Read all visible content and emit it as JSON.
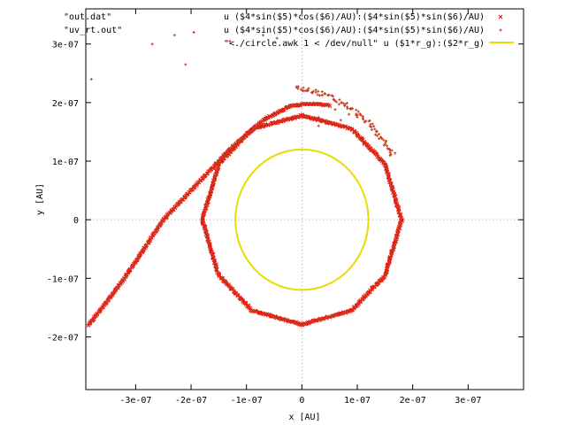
{
  "chart_data": {
    "type": "scatter",
    "xlabel": "x [AU]",
    "ylabel": "y [AU]",
    "xlim": [
      -3.9e-07,
      4e-07
    ],
    "ylim": [
      -2.9e-07,
      3.6e-07
    ],
    "xticks": [
      {
        "value": -3e-07,
        "label": "-3e-07"
      },
      {
        "value": -2e-07,
        "label": "-2e-07"
      },
      {
        "value": -1e-07,
        "label": "-1e-07"
      },
      {
        "value": 0,
        "label": "0"
      },
      {
        "value": 1e-07,
        "label": "1e-07"
      },
      {
        "value": 2e-07,
        "label": "2e-07"
      },
      {
        "value": 3e-07,
        "label": "3e-07"
      }
    ],
    "yticks": [
      {
        "value": -2e-07,
        "label": "-2e-07"
      },
      {
        "value": -1e-07,
        "label": "-1e-07"
      },
      {
        "value": 0,
        "label": "0"
      },
      {
        "value": 1e-07,
        "label": "1e-07"
      },
      {
        "value": 2e-07,
        "label": "2e-07"
      },
      {
        "value": 3e-07,
        "label": "3e-07"
      }
    ],
    "zero_axes": true,
    "legend_position": "top-right",
    "series": [
      {
        "name": "\"out.dat\"",
        "expression": "u ($4*sin($5)*cos($6)/AU):($4*sin($5)*sin($6)/AU)",
        "marker": "x",
        "color": "#ff0000",
        "style": "points",
        "segments": [
          {
            "points": [
              [
                -3.85e-07,
                -1.8e-07
              ],
              [
                -3.2e-07,
                -1e-07
              ],
              [
                -2.5e-07,
                0.0
              ],
              [
                -1.9e-07,
                6e-08
              ],
              [
                -1.3e-07,
                1.2e-07
              ],
              [
                -7e-08,
                1.7e-07
              ],
              [
                -2e-08,
                1.95e-07
              ],
              [
                2e-08,
                1.98e-07
              ],
              [
                5e-08,
                1.95e-07
              ]
            ],
            "jitter": 1e-09
          },
          {
            "points": [
              [
                0.0,
                1.78e-07
              ],
              [
                9e-08,
                1.55e-07
              ],
              [
                1.5e-07,
                9.5e-08
              ],
              [
                1.8e-07,
                0.0
              ],
              [
                1.5e-07,
                -9.5e-08
              ],
              [
                9e-08,
                -1.55e-07
              ],
              [
                0.0,
                -1.79e-07
              ],
              [
                -9e-08,
                -1.55e-07
              ],
              [
                -1.5e-07,
                -9.5e-08
              ],
              [
                -1.8e-07,
                0.0
              ],
              [
                -1.5e-07,
                9.5e-08
              ],
              [
                -9e-08,
                1.55e-07
              ],
              [
                0.0,
                1.78e-07
              ]
            ],
            "jitter": 1.2e-09
          }
        ]
      },
      {
        "name": "\"uv_rt.out\"",
        "expression": "u ($4*sin($5)*cos($6)/AU):($4*sin($5)*sin($6)/AU)",
        "marker": "+",
        "color": "#c23b1e",
        "style": "points",
        "segments": [
          {
            "points": [
              [
                -3.85e-07,
                -1.8e-07
              ],
              [
                -3.2e-07,
                -1e-07
              ],
              [
                -2.5e-07,
                0.0
              ],
              [
                -1.9e-07,
                6e-08
              ],
              [
                -1.3e-07,
                1.2e-07
              ],
              [
                -7e-08,
                1.7e-07
              ],
              [
                -2e-08,
                1.95e-07
              ],
              [
                2e-08,
                1.98e-07
              ],
              [
                5e-08,
                1.95e-07
              ]
            ],
            "jitter": 1.6e-09
          },
          {
            "points": [
              [
                0.0,
                1.78e-07
              ],
              [
                9e-08,
                1.55e-07
              ],
              [
                1.5e-07,
                9.5e-08
              ],
              [
                1.8e-07,
                0.0
              ],
              [
                1.5e-07,
                -9.5e-08
              ],
              [
                9e-08,
                -1.55e-07
              ],
              [
                0.0,
                -1.79e-07
              ],
              [
                -9e-08,
                -1.55e-07
              ],
              [
                -1.5e-07,
                -9.5e-08
              ],
              [
                -1.8e-07,
                0.0
              ],
              [
                -1.5e-07,
                9.5e-08
              ],
              [
                -9e-08,
                1.55e-07
              ],
              [
                0.0,
                1.78e-07
              ]
            ],
            "jitter": 2.2e-09
          },
          {
            "points": [
              [
                -1e-08,
                2.25e-07
              ],
              [
                2e-08,
                2.2e-07
              ],
              [
                5e-08,
                2.1e-07
              ],
              [
                8e-08,
                1.95e-07
              ],
              [
                1.1e-07,
                1.75e-07
              ],
              [
                1.3e-07,
                1.55e-07
              ],
              [
                1.5e-07,
                1.3e-07
              ],
              [
                1.65e-07,
                1.1e-07
              ]
            ],
            "jitter": 4e-09
          }
        ],
        "outliers": [
          [
            -3.8e-07,
            2.4e-07
          ],
          [
            -2.7e-07,
            3e-07
          ],
          [
            -2.3e-07,
            3.15e-07
          ],
          [
            -2.1e-07,
            2.65e-07
          ],
          [
            -1.95e-07,
            3.2e-07
          ],
          [
            -1.3e-07,
            3.05e-07
          ],
          [
            -7e-08,
            3.15e-07
          ],
          [
            -4.5e-08,
            3.1e-07
          ],
          [
            3e-08,
            1.6e-07
          ],
          [
            5e-08,
            1.65e-07
          ],
          [
            7e-08,
            1.7e-07
          ],
          [
            9e-08,
            1.55e-07
          ],
          [
            3e-08,
            1.75e-07
          ],
          [
            6e-08,
            1.88e-07
          ],
          [
            8.5e-08,
            1.8e-07
          ],
          [
            1e-07,
            1.75e-07
          ]
        ]
      },
      {
        "name": "\"<./circle.awk 1 < /dev/null\" u ($1*r_g):($2*r_g)",
        "marker": "line",
        "color": "#e8dc00",
        "style": "lines",
        "circle": {
          "cx": 0.0,
          "cy": 0.0,
          "r": 1.2e-07
        }
      }
    ]
  }
}
